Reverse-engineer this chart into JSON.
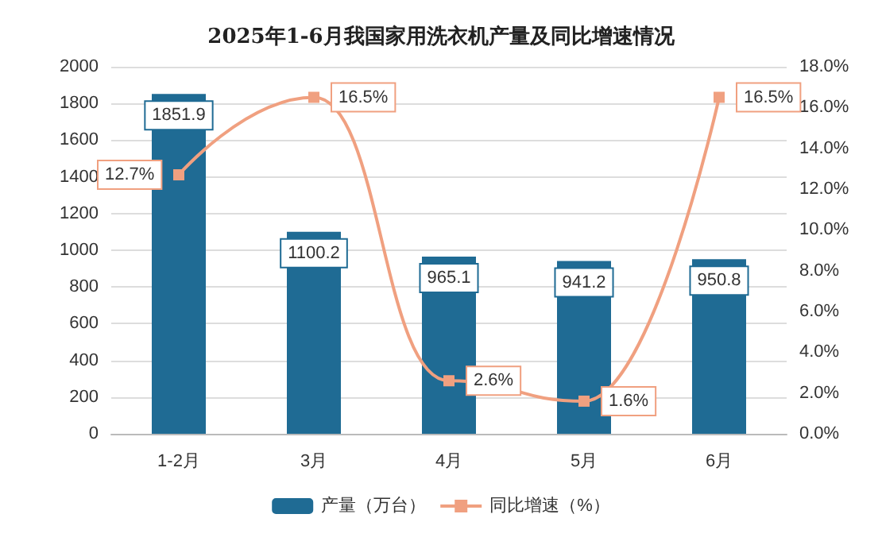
{
  "chart_data": {
    "type": "bar",
    "title": "2025年1-6月我国家用洗衣机产量及同比增速情况",
    "categories": [
      "1-2月",
      "3月",
      "4月",
      "5月",
      "6月"
    ],
    "series": [
      {
        "name": "产量（万台）",
        "color": "#1f6b94",
        "values": [
          1851.9,
          1100.2,
          965.1,
          941.2,
          950.8
        ]
      },
      {
        "name": "同比增速（%）",
        "type": "line",
        "axis": "y2",
        "color": "#f0a080",
        "values": [
          12.7,
          16.5,
          2.6,
          1.6,
          16.5
        ],
        "value_labels": [
          "12.7%",
          "16.5%",
          "2.6%",
          "1.6%",
          "16.5%"
        ]
      }
    ],
    "data_labels": true,
    "ylim": [
      0,
      2000
    ],
    "yticks": [
      0,
      200,
      400,
      600,
      800,
      1000,
      1200,
      1400,
      1600,
      1800,
      2000
    ],
    "y2lim": [
      0,
      18
    ],
    "y2ticks": [
      {
        "value": 0,
        "label": "0.0%"
      },
      {
        "value": 2,
        "label": "2.0%"
      },
      {
        "value": 4,
        "label": "4.0%"
      },
      {
        "value": 6,
        "label": "6.0%"
      },
      {
        "value": 8,
        "label": "8.0%"
      },
      {
        "value": 10,
        "label": "10.0%"
      },
      {
        "value": 12,
        "label": "12.0%"
      },
      {
        "value": 14,
        "label": "14.0%"
      },
      {
        "value": 16,
        "label": "16.0%"
      },
      {
        "value": 18,
        "label": "18.0%"
      }
    ],
    "grid": "y",
    "legend": "bottom",
    "marker": "square",
    "line_style": "solid"
  }
}
